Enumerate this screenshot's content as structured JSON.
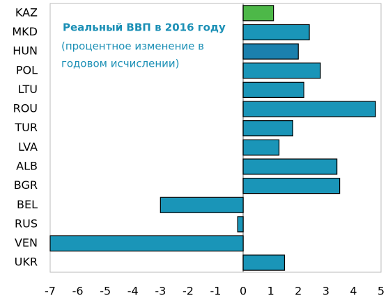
{
  "chart_data": {
    "type": "bar",
    "orientation": "horizontal",
    "title": "Реальный ВВП в 2016 году",
    "subtitle": [
      "(процентное изменение в",
      "годовом исчислении)"
    ],
    "categories": [
      "KAZ",
      "MKD",
      "HUN",
      "POL",
      "LTU",
      "ROU",
      "TUR",
      "LVA",
      "ALB",
      "BGR",
      "BEL",
      "RUS",
      "VEN",
      "UKR"
    ],
    "values": [
      1.1,
      2.4,
      2.0,
      2.8,
      2.2,
      4.8,
      1.8,
      1.3,
      3.4,
      3.5,
      -3.0,
      -0.2,
      -7.0,
      1.5
    ],
    "colors": [
      "#4db848",
      "#1a95b8",
      "#1b80ad",
      "#1a95b8",
      "#1a95b8",
      "#1a95b8",
      "#1a95b8",
      "#1a95b8",
      "#1a95b8",
      "#1a95b8",
      "#1a95b8",
      "#1a95b8",
      "#1a95b8",
      "#1a95b8"
    ],
    "xlim": [
      -7,
      5
    ],
    "xticks": [
      -7,
      -6,
      -5,
      -4,
      -3,
      -2,
      -1,
      0,
      1,
      2,
      3,
      4,
      5
    ],
    "grid": false
  }
}
